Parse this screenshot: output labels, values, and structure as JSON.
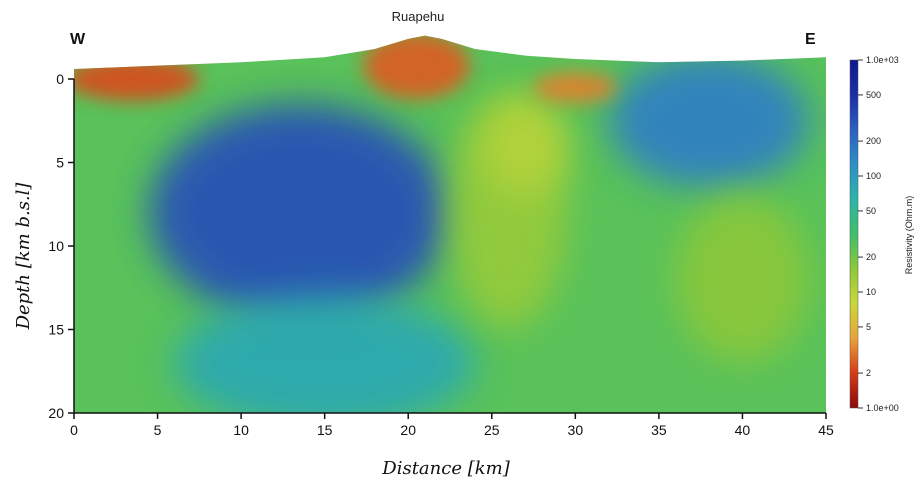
{
  "chart_data": {
    "type": "heatmap",
    "title": "Ruapehu",
    "xlabel": "Distance [km]",
    "ylabel": "Depth [km b.s.l]",
    "corner_left": "W",
    "corner_right": "E",
    "xlim": [
      0,
      45
    ],
    "ylim": [
      20,
      0
    ],
    "xticks": [
      0,
      5,
      10,
      15,
      20,
      25,
      30,
      35,
      40,
      45
    ],
    "yticks": [
      0,
      5,
      10,
      15,
      20
    ],
    "colorbar": {
      "label": "Resistivity (Ohm.m)",
      "scale": "log",
      "range": [
        1,
        1000
      ],
      "ticks": [
        {
          "value": 1000,
          "label": "1.0e+03"
        },
        {
          "value": 500,
          "label": "500"
        },
        {
          "value": 200,
          "label": "200"
        },
        {
          "value": 100,
          "label": "100"
        },
        {
          "value": 50,
          "label": "50"
        },
        {
          "value": 20,
          "label": "20"
        },
        {
          "value": 10,
          "label": "10"
        },
        {
          "value": 5,
          "label": "5"
        },
        {
          "value": 2,
          "label": "2"
        },
        {
          "value": 1,
          "label": "1.0e+00"
        }
      ],
      "colors": [
        "#8b0a0a",
        "#d63a16",
        "#e8a33a",
        "#c9d83a",
        "#8cc83a",
        "#3fbf6a",
        "#2bb5a8",
        "#2e8fc6",
        "#2b5fc0",
        "#1d2ea8",
        "#0c1a8f"
      ]
    },
    "background_log10_ohm_m": 1.4,
    "topography": [
      {
        "x": 0,
        "elev_km": 0.6
      },
      {
        "x": 5,
        "elev_km": 0.8
      },
      {
        "x": 10,
        "elev_km": 1.0
      },
      {
        "x": 15,
        "elev_km": 1.3
      },
      {
        "x": 18,
        "elev_km": 1.8
      },
      {
        "x": 20,
        "elev_km": 2.4
      },
      {
        "x": 21,
        "elev_km": 2.6
      },
      {
        "x": 22,
        "elev_km": 2.4
      },
      {
        "x": 24,
        "elev_km": 1.8
      },
      {
        "x": 27,
        "elev_km": 1.4
      },
      {
        "x": 30,
        "elev_km": 1.2
      },
      {
        "x": 35,
        "elev_km": 1.0
      },
      {
        "x": 40,
        "elev_km": 1.1
      },
      {
        "x": 45,
        "elev_km": 1.3
      }
    ],
    "anomalies": [
      {
        "x": 13.5,
        "depth_km": 8,
        "rx_km": 9,
        "ry_km": 6.5,
        "log10_ohm_m": 2.5
      },
      {
        "x": 38,
        "depth_km": 2.5,
        "rx_km": 6,
        "ry_km": 4,
        "log10_ohm_m": 2.2
      },
      {
        "x": 15,
        "depth_km": 17,
        "rx_km": 9,
        "ry_km": 4,
        "log10_ohm_m": 1.9
      },
      {
        "x": 26,
        "depth_km": 8,
        "rx_km": 3.5,
        "ry_km": 7,
        "log10_ohm_m": 1.15
      },
      {
        "x": 27,
        "depth_km": 4,
        "rx_km": 2.5,
        "ry_km": 3,
        "log10_ohm_m": 1.0
      },
      {
        "x": 40,
        "depth_km": 12,
        "rx_km": 4,
        "ry_km": 5,
        "log10_ohm_m": 1.2
      },
      {
        "x": 3.5,
        "depth_km": 0,
        "rx_km": 4,
        "ry_km": 1.3,
        "log10_ohm_m": 0.35
      },
      {
        "x": 20.5,
        "depth_km": -0.8,
        "rx_km": 3.2,
        "ry_km": 2,
        "log10_ohm_m": 0.4
      },
      {
        "x": 30,
        "depth_km": 0.5,
        "rx_km": 2.5,
        "ry_km": 0.9,
        "log10_ohm_m": 0.5
      }
    ]
  }
}
